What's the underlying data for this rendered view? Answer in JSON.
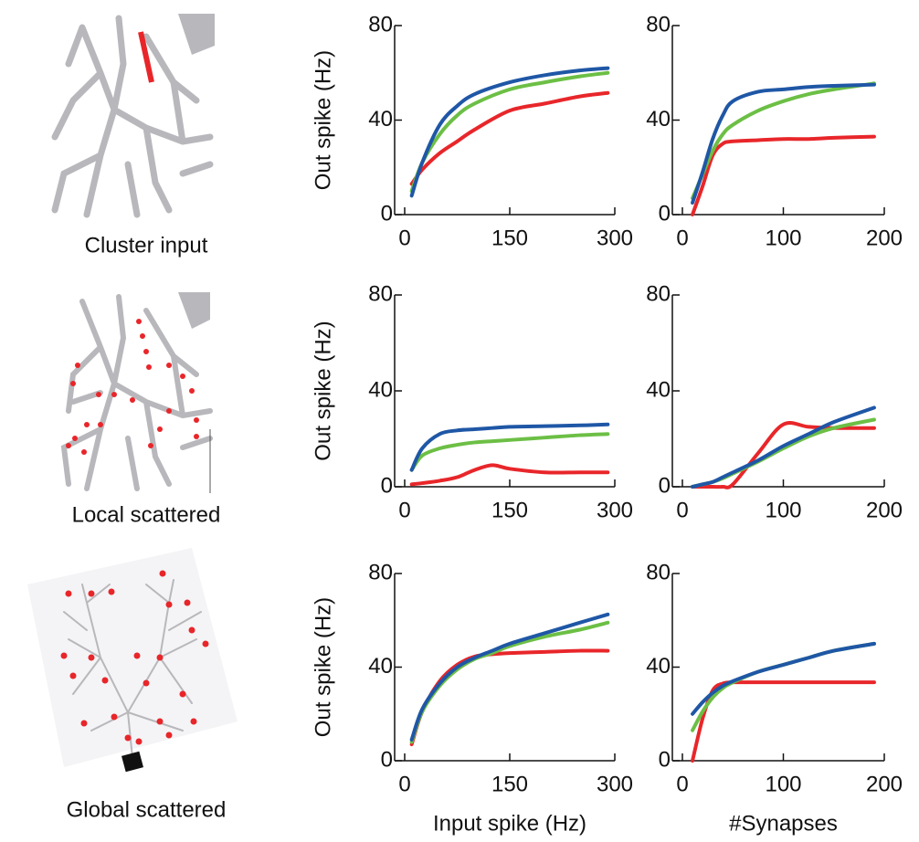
{
  "row_labels": [
    "Cluster input",
    "Local scattered",
    "Global scattered"
  ],
  "chart_data": [
    {
      "type": "line",
      "y_label": "Out spike (Hz)",
      "x": [
        10,
        25,
        50,
        75,
        100,
        150,
        200,
        250,
        290
      ],
      "series": [
        {
          "color": "#e8262a",
          "values": [
            13,
            19,
            26,
            31,
            36,
            44,
            47,
            50,
            51.5
          ]
        },
        {
          "color": "#6cbf45",
          "values": [
            10,
            22,
            34,
            42,
            47,
            53,
            56,
            58.5,
            60
          ]
        },
        {
          "color": "#1f57a6",
          "values": [
            8,
            22,
            38,
            46,
            51,
            56,
            59,
            61,
            62
          ]
        }
      ],
      "xlim": [
        0,
        300
      ],
      "xticks": [
        0,
        150,
        300
      ],
      "ylim": [
        0,
        80
      ],
      "yticks": [
        0,
        40,
        80
      ]
    },
    {
      "type": "line",
      "x": [
        10,
        20,
        30,
        40,
        50,
        75,
        100,
        125,
        150,
        190
      ],
      "series": [
        {
          "color": "#e8262a",
          "values": [
            0,
            12,
            25,
            30,
            31,
            31.5,
            32,
            32,
            32.5,
            33
          ]
        },
        {
          "color": "#6cbf45",
          "values": [
            7,
            17,
            27,
            34,
            38,
            44,
            48,
            51,
            53,
            55.5
          ]
        },
        {
          "color": "#1f57a6",
          "values": [
            5,
            18,
            32,
            42,
            48,
            52,
            53,
            54,
            54.5,
            55
          ]
        }
      ],
      "xlim": [
        0,
        200
      ],
      "xticks": [
        0,
        100,
        200
      ],
      "ylim": [
        0,
        80
      ],
      "yticks": [
        0,
        40,
        80
      ]
    },
    {
      "type": "line",
      "y_label": "Out spike (Hz)",
      "x": [
        10,
        25,
        50,
        75,
        100,
        125,
        150,
        200,
        250,
        290
      ],
      "series": [
        {
          "color": "#e8262a",
          "values": [
            1,
            1.5,
            2.5,
            4,
            7,
            9,
            7.5,
            6,
            6,
            6
          ]
        },
        {
          "color": "#6cbf45",
          "values": [
            7,
            13,
            16,
            17.5,
            18.5,
            19,
            19.5,
            20.5,
            21.5,
            22
          ]
        },
        {
          "color": "#1f57a6",
          "values": [
            7,
            16,
            22,
            23.5,
            24,
            24.5,
            25,
            25.3,
            25.6,
            26
          ]
        }
      ],
      "xlim": [
        0,
        300
      ],
      "xticks": [
        0,
        150,
        300
      ],
      "ylim": [
        0,
        80
      ],
      "yticks": [
        0,
        40,
        80
      ]
    },
    {
      "type": "line",
      "x": [
        10,
        20,
        30,
        40,
        50,
        75,
        100,
        125,
        150,
        190
      ],
      "series": [
        {
          "color": "#e8262a",
          "values": [
            0,
            0,
            0,
            0,
            1,
            14,
            26,
            25,
            24.5,
            24.5
          ]
        },
        {
          "color": "#6cbf45",
          "values": [
            0,
            1,
            2,
            3.5,
            5.5,
            10.5,
            16,
            21,
            24.5,
            28
          ]
        },
        {
          "color": "#1f57a6",
          "values": [
            0,
            1,
            2,
            4,
            6,
            11,
            17,
            22,
            27,
            33
          ]
        }
      ],
      "xlim": [
        0,
        200
      ],
      "xticks": [
        0,
        100,
        200
      ],
      "ylim": [
        0,
        80
      ],
      "yticks": [
        0,
        40,
        80
      ]
    },
    {
      "type": "line",
      "y_label": "Out spike (Hz)",
      "x_label": "Input spike (Hz)",
      "x": [
        10,
        25,
        50,
        75,
        100,
        125,
        150,
        200,
        250,
        290
      ],
      "series": [
        {
          "color": "#e8262a",
          "values": [
            7,
            21,
            34,
            41,
            44.5,
            45.5,
            46,
            46.5,
            47,
            47
          ]
        },
        {
          "color": "#6cbf45",
          "values": [
            8,
            21,
            32,
            39,
            43.5,
            46,
            49,
            53,
            56,
            59
          ]
        },
        {
          "color": "#1f57a6",
          "values": [
            9,
            22,
            33,
            40,
            44,
            47,
            50,
            54.5,
            59,
            62.5
          ]
        }
      ],
      "xlim": [
        0,
        300
      ],
      "xticks": [
        0,
        150,
        300
      ],
      "ylim": [
        0,
        80
      ],
      "yticks": [
        0,
        40,
        80
      ]
    },
    {
      "type": "line",
      "x_label": "#Synapses",
      "x": [
        10,
        20,
        30,
        40,
        50,
        75,
        100,
        125,
        150,
        190
      ],
      "series": [
        {
          "color": "#e8262a",
          "values": [
            0,
            18,
            30,
            33,
            33.5,
            33.5,
            33.5,
            33.5,
            33.5,
            33.5
          ]
        },
        {
          "color": "#6cbf45",
          "values": [
            13,
            21,
            27,
            31,
            33.5,
            38,
            41,
            44,
            47,
            50
          ]
        },
        {
          "color": "#1f57a6",
          "values": [
            20,
            25,
            29,
            32,
            34,
            38,
            41,
            44,
            47,
            50
          ]
        }
      ],
      "xlim": [
        0,
        200
      ],
      "xticks": [
        0,
        100,
        200
      ],
      "ylim": [
        0,
        80
      ],
      "yticks": [
        0,
        40,
        80
      ]
    }
  ]
}
